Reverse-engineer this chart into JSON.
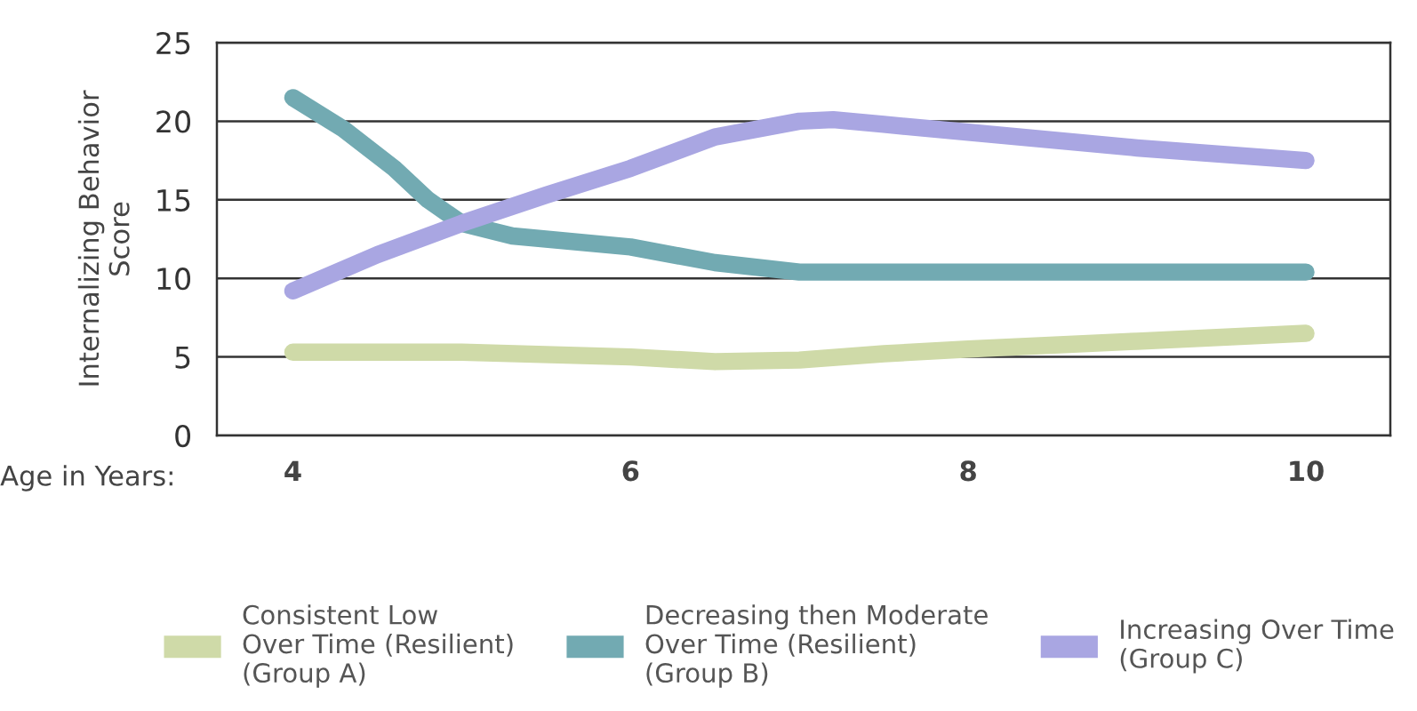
{
  "chart_data": {
    "type": "line",
    "ylabel": "Internalizing Behavior\nScore",
    "xlabel": "Age in Years:",
    "xlim": [
      3.55,
      10.5
    ],
    "xticks": [
      4,
      6,
      8,
      10
    ],
    "ylim": [
      0,
      25
    ],
    "yticks": [
      0,
      5,
      10,
      15,
      20,
      25
    ],
    "grid": "y",
    "legend": "bottom",
    "marker": "none",
    "line_style": "solid",
    "series": [
      {
        "name": "Consistent Low\nOver Time (Resilient)\n(Group A)",
        "color": "#cfdaa8",
        "x": [
          4,
          5,
          6,
          6.5,
          7,
          7.5,
          8,
          9,
          10
        ],
        "values": [
          5.3,
          5.3,
          5.0,
          4.7,
          4.8,
          5.2,
          5.5,
          6.0,
          6.5
        ]
      },
      {
        "name": "Decreasing then Moderate\nOver Time (Resilient)\n(Group B)",
        "color": "#72aab2",
        "x": [
          4,
          4.3,
          4.6,
          4.8,
          5,
          5.3,
          6,
          6.5,
          7,
          7.5,
          10
        ],
        "values": [
          21.5,
          19.5,
          17,
          15,
          13.5,
          12.7,
          12.0,
          11,
          10.4,
          10.4,
          10.4
        ]
      },
      {
        "name": "Increasing Over Time\n(Group C)",
        "color": "#a9a6e2",
        "x": [
          4,
          4.5,
          5,
          5.5,
          6,
          6.5,
          7,
          7.2,
          7.5,
          8,
          9,
          10
        ],
        "values": [
          9.2,
          11.5,
          13.5,
          15.3,
          17,
          19,
          20,
          20.1,
          19.8,
          19.3,
          18.3,
          17.5
        ]
      }
    ]
  }
}
